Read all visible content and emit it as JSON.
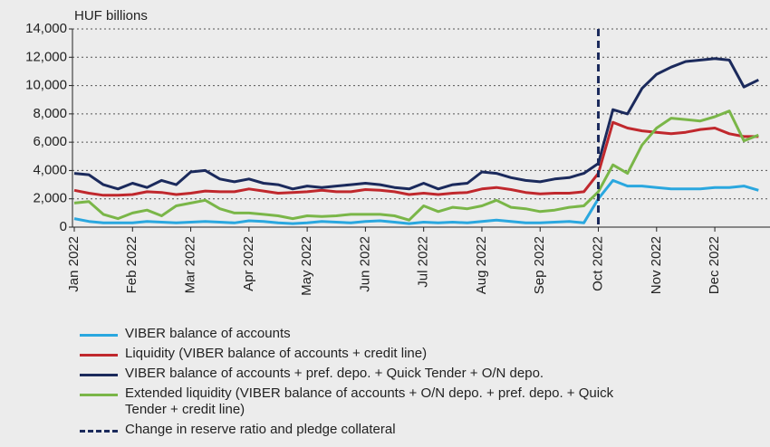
{
  "chart_data": {
    "type": "line",
    "y_label": "HUF billions",
    "categories": [
      "Jan 2022",
      null,
      null,
      null,
      "Feb 2022",
      null,
      null,
      null,
      "Mar 2022",
      null,
      null,
      null,
      "Apr 2022",
      null,
      null,
      null,
      "May 2022",
      null,
      null,
      null,
      "Jun 2022",
      null,
      null,
      null,
      "Jul 2022",
      null,
      null,
      null,
      "Aug 2022",
      null,
      null,
      null,
      "Sep 2022",
      null,
      null,
      null,
      "Oct 2022",
      null,
      null,
      null,
      "Nov 2022",
      null,
      null,
      null,
      "Dec 2022",
      null,
      null,
      null
    ],
    "series": [
      {
        "name": "VIBER balance of accounts",
        "color": "#2aa7df",
        "values": [
          600,
          400,
          300,
          300,
          300,
          400,
          350,
          300,
          350,
          400,
          350,
          300,
          450,
          400,
          300,
          250,
          300,
          400,
          350,
          300,
          400,
          450,
          350,
          250,
          350,
          300,
          350,
          300,
          400,
          500,
          400,
          300,
          300,
          350,
          400,
          300,
          2000,
          3300,
          2900,
          2900,
          2800,
          2700,
          2700,
          2700,
          2800,
          2800,
          2900,
          2600
        ]
      },
      {
        "name": "Liquidity (VIBER balance of accounts + credit line)",
        "color": "#c0282d",
        "values": [
          2600,
          2400,
          2250,
          2250,
          2300,
          2500,
          2450,
          2300,
          2400,
          2550,
          2500,
          2500,
          2700,
          2550,
          2400,
          2450,
          2500,
          2600,
          2500,
          2500,
          2650,
          2600,
          2500,
          2300,
          2400,
          2300,
          2400,
          2450,
          2700,
          2800,
          2650,
          2450,
          2350,
          2400,
          2400,
          2500,
          3800,
          7400,
          7000,
          6800,
          6700,
          6600,
          6700,
          6900,
          7000,
          6600,
          6400,
          6400
        ]
      },
      {
        "name": "VIBER balance of accounts + pref. depo. + Quick Tender + O/N depo.",
        "color": "#1b2a5c",
        "values": [
          3800,
          3700,
          3000,
          2700,
          3100,
          2800,
          3300,
          3000,
          3900,
          4000,
          3400,
          3200,
          3400,
          3100,
          3000,
          2700,
          2900,
          2800,
          2900,
          3000,
          3100,
          3000,
          2800,
          2700,
          3100,
          2700,
          3000,
          3100,
          3900,
          3800,
          3500,
          3300,
          3200,
          3400,
          3500,
          3800,
          4500,
          8300,
          8000,
          9800,
          10800,
          11300,
          11700,
          11800,
          11900,
          11800,
          9900,
          10400
        ]
      },
      {
        "name": "Extended liquidity (VIBER balance of accounts + O/N depo. + pref. depo. + Quick Tender + credit line)",
        "color": "#7ab648",
        "values": [
          1700,
          1800,
          900,
          600,
          1000,
          1200,
          800,
          1500,
          1700,
          1900,
          1300,
          1000,
          1000,
          900,
          800,
          600,
          800,
          750,
          800,
          900,
          900,
          900,
          800,
          500,
          1500,
          1100,
          1400,
          1300,
          1500,
          1900,
          1400,
          1300,
          1100,
          1200,
          1400,
          1500,
          2500,
          4400,
          3800,
          5800,
          7000,
          7700,
          7600,
          7500,
          7800,
          8200,
          6100,
          6500
        ]
      }
    ],
    "vline": {
      "name": "Change in reserve ratio and pledge collateral",
      "category": "Oct 2022",
      "color": "#1b2a5c"
    },
    "ylim": [
      0,
      14000
    ],
    "yticks": [
      0,
      {
        "value": 2000,
        "label": "2,000"
      },
      {
        "value": 4000,
        "label": "4,000"
      },
      {
        "value": 6000,
        "label": "6,000"
      },
      {
        "value": 8000,
        "label": "8,000"
      },
      {
        "value": 10000,
        "label": "10,000"
      },
      {
        "value": 12000,
        "label": "12,000"
      },
      {
        "value": 14000,
        "label": "14,000"
      }
    ],
    "grid": true
  }
}
